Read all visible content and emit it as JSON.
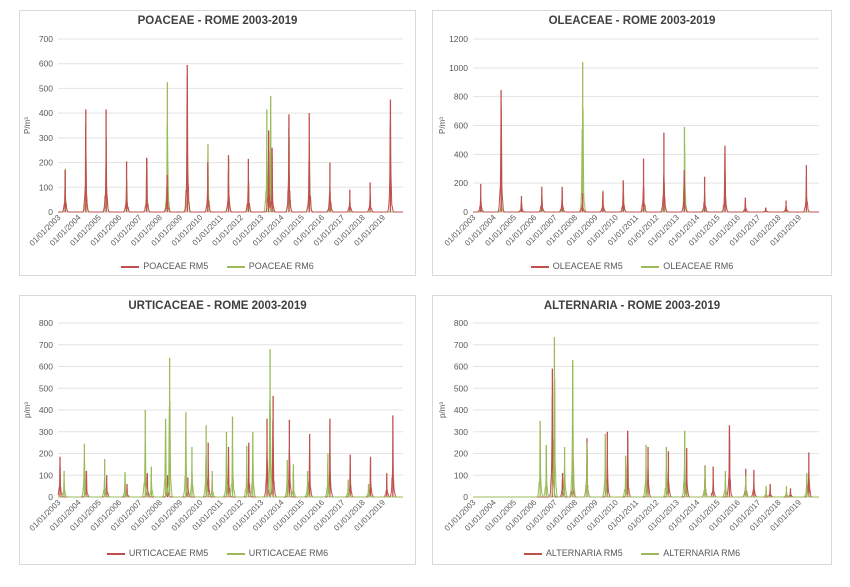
{
  "colors": {
    "rm5": "#c0504d",
    "rm6": "#9bbb59",
    "grid": "#e3e3e3",
    "axis": "#bfbfbf",
    "text": "#595959"
  },
  "chart_data": [
    {
      "type": "line",
      "title": "POACEAE - ROME 2003-2019",
      "ylabel": "P/m³",
      "ylim": [
        0,
        700
      ],
      "yticks": [
        0,
        100,
        200,
        300,
        400,
        500,
        600,
        700
      ],
      "xticks": [
        "01/01/2003",
        "01/01/2004",
        "01/01/2005",
        "01/01/2006",
        "01/01/2007",
        "01/01/2008",
        "01/01/2009",
        "01/01/2010",
        "01/01/2011",
        "01/01/2012",
        "01/01/2013",
        "01/01/2014",
        "01/01/2015",
        "01/01/2016",
        "01/01/2017",
        "01/01/2018",
        "01/01/2019"
      ],
      "legend_position": "bottom",
      "grid": true,
      "series": [
        {
          "name": "POACEAE RM5",
          "color": "#c0504d",
          "peaks": [
            [
              2003.35,
              170
            ],
            [
              2004.37,
              415
            ],
            [
              2005.37,
              415
            ],
            [
              2006.38,
              205
            ],
            [
              2007.37,
              220
            ],
            [
              2008.38,
              150
            ],
            [
              2009.37,
              595
            ],
            [
              2010.38,
              200
            ],
            [
              2011.4,
              230
            ],
            [
              2012.38,
              215
            ],
            [
              2013.38,
              330
            ],
            [
              2013.55,
              260
            ],
            [
              2014.38,
              395
            ],
            [
              2015.38,
              400
            ],
            [
              2016.4,
              200
            ],
            [
              2017.38,
              90
            ],
            [
              2018.38,
              120
            ],
            [
              2019.38,
              455
            ]
          ]
        },
        {
          "name": "POACEAE RM6",
          "color": "#9bbb59",
          "peaks": [
            [
              2003.36,
              175
            ],
            [
              2004.38,
              160
            ],
            [
              2005.38,
              200
            ],
            [
              2006.39,
              130
            ],
            [
              2007.38,
              215
            ],
            [
              2008.39,
              525
            ],
            [
              2009.38,
              230
            ],
            [
              2010.39,
              275
            ],
            [
              2011.41,
              215
            ],
            [
              2012.39,
              130
            ],
            [
              2013.29,
              415
            ],
            [
              2013.48,
              470
            ],
            [
              2014.39,
              300
            ],
            [
              2015.39,
              280
            ],
            [
              2016.41,
              80
            ]
          ]
        }
      ]
    },
    {
      "type": "line",
      "title": "OLEACEAE - ROME 2003-2019",
      "ylabel": "P/m³",
      "ylim": [
        0,
        1200
      ],
      "yticks": [
        0,
        200,
        400,
        600,
        800,
        1000,
        1200
      ],
      "xticks": [
        "01/01/2003",
        "01/01/2004",
        "01/01/2005",
        "01/01/2006",
        "01/01/2007",
        "01/01/2008",
        "01/01/2009",
        "01/01/2010",
        "01/01/2011",
        "01/01/2012",
        "01/01/2013",
        "01/01/2014",
        "01/01/2015",
        "01/01/2016",
        "01/01/2017",
        "01/01/2018",
        "01/01/2019"
      ],
      "legend_position": "bottom",
      "grid": true,
      "series": [
        {
          "name": "OLEACEAE RM5",
          "color": "#c0504d",
          "peaks": [
            [
              2003.38,
              195
            ],
            [
              2004.38,
              845
            ],
            [
              2005.38,
              110
            ],
            [
              2006.38,
              175
            ],
            [
              2007.38,
              175
            ],
            [
              2008.38,
              130
            ],
            [
              2009.38,
              140
            ],
            [
              2010.38,
              220
            ],
            [
              2011.38,
              370
            ],
            [
              2012.38,
              550
            ],
            [
              2013.38,
              290
            ],
            [
              2014.38,
              245
            ],
            [
              2015.38,
              460
            ],
            [
              2016.38,
              100
            ],
            [
              2017.38,
              30
            ],
            [
              2018.38,
              80
            ],
            [
              2019.38,
              325
            ]
          ]
        },
        {
          "name": "OLEACEAE RM6",
          "color": "#9bbb59",
          "peaks": [
            [
              2003.39,
              60
            ],
            [
              2004.39,
              130
            ],
            [
              2005.39,
              60
            ],
            [
              2006.39,
              120
            ],
            [
              2007.39,
              90
            ],
            [
              2008.39,
              1040
            ],
            [
              2009.39,
              150
            ],
            [
              2010.39,
              200
            ],
            [
              2011.39,
              120
            ],
            [
              2012.39,
              200
            ],
            [
              2013.39,
              590
            ],
            [
              2014.39,
              100
            ],
            [
              2015.39,
              280
            ],
            [
              2016.39,
              60
            ],
            [
              2017.39,
              30
            ]
          ]
        }
      ]
    },
    {
      "type": "line",
      "title": "URTICACEAE - ROME 2003-2019",
      "ylabel": "p/m³",
      "ylim": [
        0,
        800
      ],
      "yticks": [
        0,
        100,
        200,
        300,
        400,
        500,
        600,
        700,
        800
      ],
      "xticks": [
        "01/01/2003",
        "01/01/2004",
        "01/01/2005",
        "01/01/2006",
        "01/01/2007",
        "01/01/2008",
        "01/01/2009",
        "01/01/2010",
        "01/01/2011",
        "01/01/2012",
        "01/01/2013",
        "01/01/2014",
        "01/01/2015",
        "01/01/2016",
        "01/01/2017",
        "01/01/2018",
        "01/01/2019"
      ],
      "legend_position": "bottom",
      "grid": true,
      "series": [
        {
          "name": "URTICACEAE RM5",
          "color": "#c0504d",
          "peaks": [
            [
              2003.1,
              185
            ],
            [
              2004.4,
              120
            ],
            [
              2005.4,
              100
            ],
            [
              2006.4,
              60
            ],
            [
              2007.4,
              110
            ],
            [
              2008.4,
              100
            ],
            [
              2009.4,
              90
            ],
            [
              2010.4,
              250
            ],
            [
              2011.4,
              230
            ],
            [
              2012.4,
              250
            ],
            [
              2013.3,
              360
            ],
            [
              2013.6,
              465
            ],
            [
              2014.4,
              355
            ],
            [
              2015.4,
              290
            ],
            [
              2016.4,
              360
            ],
            [
              2017.4,
              195
            ],
            [
              2018.4,
              185
            ],
            [
              2019.2,
              110
            ],
            [
              2019.5,
              375
            ]
          ]
        },
        {
          "name": "URTICACEAE RM6",
          "color": "#9bbb59",
          "peaks": [
            [
              2003.3,
              120
            ],
            [
              2004.3,
              245
            ],
            [
              2005.3,
              175
            ],
            [
              2006.3,
              115
            ],
            [
              2007.3,
              400
            ],
            [
              2007.6,
              140
            ],
            [
              2008.3,
              360
            ],
            [
              2008.5,
              640
            ],
            [
              2009.3,
              390
            ],
            [
              2009.6,
              230
            ],
            [
              2010.3,
              330
            ],
            [
              2010.6,
              120
            ],
            [
              2011.3,
              300
            ],
            [
              2011.6,
              370
            ],
            [
              2012.3,
              235
            ],
            [
              2012.6,
              300
            ],
            [
              2013.45,
              680
            ],
            [
              2014.3,
              170
            ],
            [
              2014.6,
              150
            ],
            [
              2015.3,
              120
            ],
            [
              2016.3,
              200
            ],
            [
              2017.3,
              80
            ],
            [
              2018.3,
              60
            ]
          ]
        }
      ]
    },
    {
      "type": "line",
      "title": "ALTERNARIA - ROME 2003-2019",
      "ylabel": "p/m³",
      "ylim": [
        0,
        800
      ],
      "yticks": [
        0,
        100,
        200,
        300,
        400,
        500,
        600,
        700,
        800
      ],
      "xticks": [
        "01/01/2003",
        "01/01/2004",
        "01/01/2005",
        "01/01/2006",
        "01/01/2007",
        "01/01/2008",
        "01/01/2009",
        "01/01/2010",
        "01/01/2011",
        "01/01/2012",
        "01/01/2013",
        "01/01/2014",
        "01/01/2015",
        "01/01/2016",
        "01/01/2017",
        "01/01/2018",
        "01/01/2019"
      ],
      "legend_position": "bottom",
      "grid": true,
      "series": [
        {
          "name": "ALTERNARIA RM5",
          "color": "#c0504d",
          "peaks": [
            [
              2006.9,
              590
            ],
            [
              2007.4,
              110
            ],
            [
              2007.9,
              140
            ],
            [
              2008.6,
              270
            ],
            [
              2009.6,
              300
            ],
            [
              2010.6,
              305
            ],
            [
              2011.6,
              230
            ],
            [
              2012.6,
              210
            ],
            [
              2013.5,
              225
            ],
            [
              2014.4,
              145
            ],
            [
              2014.8,
              140
            ],
            [
              2015.6,
              330
            ],
            [
              2016.4,
              130
            ],
            [
              2016.8,
              125
            ],
            [
              2017.6,
              60
            ],
            [
              2018.6,
              40
            ],
            [
              2019.5,
              205
            ]
          ]
        },
        {
          "name": "ALTERNARIA RM6",
          "color": "#9bbb59",
          "peaks": [
            [
              2006.3,
              350
            ],
            [
              2006.6,
              240
            ],
            [
              2007.0,
              735
            ],
            [
              2007.5,
              230
            ],
            [
              2007.9,
              630
            ],
            [
              2008.6,
              250
            ],
            [
              2009.5,
              290
            ],
            [
              2010.5,
              190
            ],
            [
              2011.5,
              240
            ],
            [
              2012.5,
              230
            ],
            [
              2013.4,
              305
            ],
            [
              2014.4,
              140
            ],
            [
              2015.4,
              120
            ],
            [
              2016.4,
              100
            ],
            [
              2017.4,
              50
            ],
            [
              2018.4,
              50
            ],
            [
              2019.4,
              110
            ]
          ]
        }
      ]
    }
  ]
}
